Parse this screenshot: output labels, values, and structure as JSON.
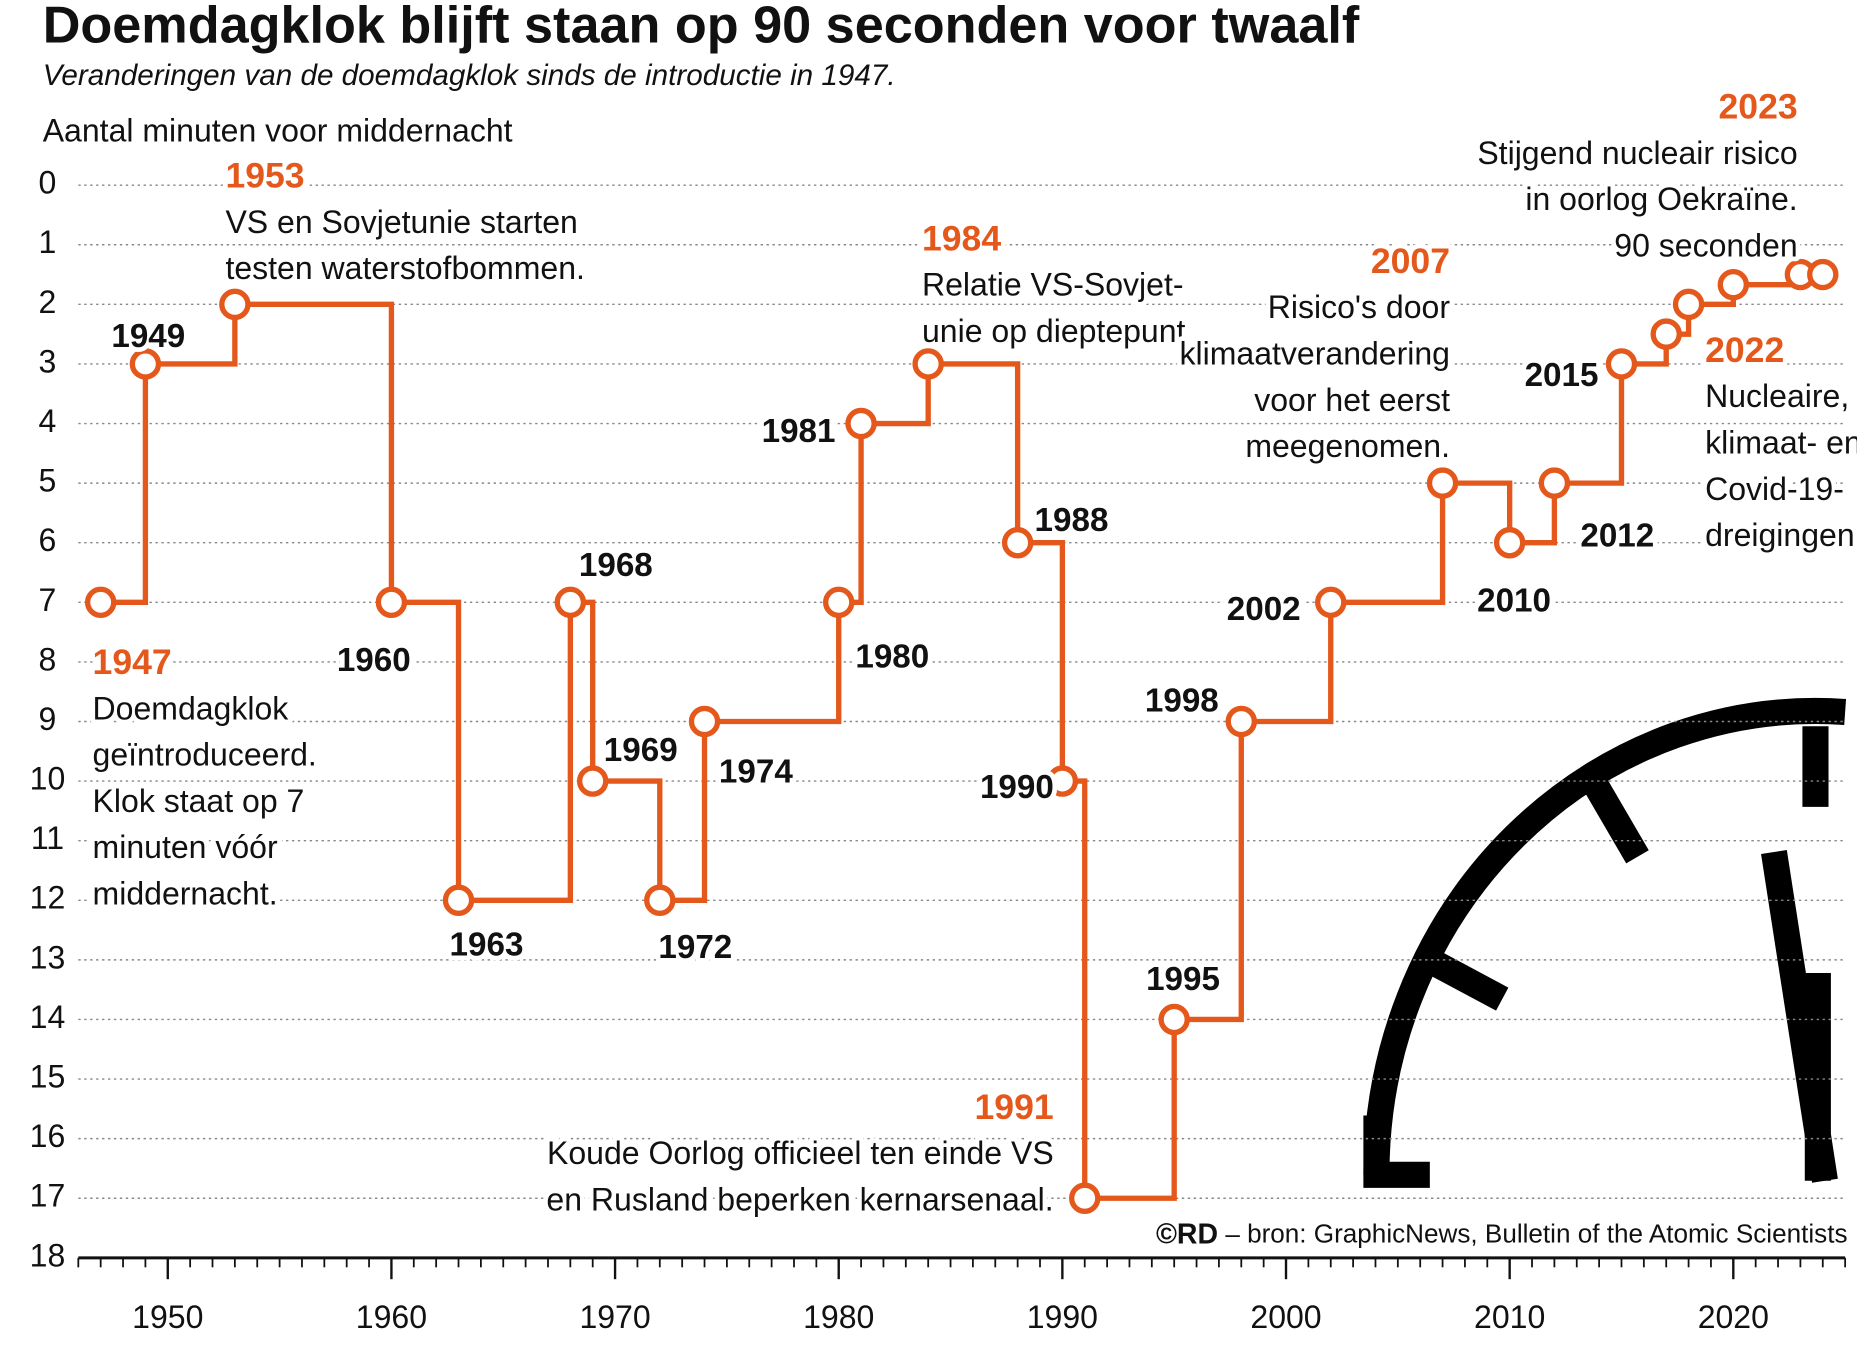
{
  "chart_data": {
    "type": "step",
    "title": "Doemdagklok blijft staan op 90 seconden voor twaalf",
    "subtitle": "Veranderingen van de doemdagklok sinds de introductie in 1947.",
    "y_label": "Aantal minuten voor middernacht",
    "source_mark": "©RD",
    "source": "– bron: GraphicNews, Bulletin of the Atomic Scientists",
    "color": "#e4581c",
    "x": [
      1947,
      1949,
      1953,
      1960,
      1963,
      1968,
      1969,
      1972,
      1974,
      1980,
      1981,
      1984,
      1988,
      1990,
      1991,
      1995,
      1998,
      2002,
      2007,
      2010,
      2012,
      2015,
      2017,
      2018,
      2020,
      2023,
      2024
    ],
    "values": [
      7,
      3,
      2,
      7,
      12,
      7,
      10,
      12,
      9,
      7,
      4,
      3,
      6,
      10,
      17,
      14,
      9,
      7,
      5,
      6,
      5,
      3,
      2.5,
      2,
      1.67,
      1.5,
      1.5
    ],
    "xlim": [
      1946,
      2025
    ],
    "xticks": [
      1950,
      1960,
      1970,
      1980,
      1990,
      2000,
      2010,
      2020
    ],
    "ylim": [
      0,
      18
    ],
    "yticks": [
      0,
      1,
      2,
      3,
      4,
      5,
      6,
      7,
      8,
      9,
      10,
      11,
      12,
      13,
      14,
      15,
      16,
      17,
      18
    ],
    "y_inverted": true,
    "grid": true,
    "annotations": [
      {
        "label": "1947",
        "text": [
          "Doemdagklok",
          "geïntroduceerd.",
          "Klok staat op 7",
          "minuten vóór",
          "middernacht."
        ]
      },
      {
        "label": "1953",
        "text": [
          "VS en Sovjetunie starten",
          "testen waterstofbommen."
        ]
      },
      {
        "label": "1984",
        "text": [
          "Relatie VS-Sovjet-",
          "unie op dieptepunt"
        ]
      },
      {
        "label": "1991",
        "text": [
          "Koude Oorlog officieel ten einde VS",
          "en Rusland beperken kernarsenaal."
        ]
      },
      {
        "label": "2007",
        "text": [
          "Risico's door",
          "klimaatverandering",
          "voor het eerst",
          "meegenomen."
        ]
      },
      {
        "label": "2022",
        "text": [
          "Nucleaire,",
          "klimaat- en",
          "Covid-19-",
          "dreigingen."
        ]
      },
      {
        "label": "2023",
        "text": [
          "Stijgend nucleair risico",
          "in oorlog Oekraïne.",
          "90 seconden"
        ]
      }
    ]
  }
}
